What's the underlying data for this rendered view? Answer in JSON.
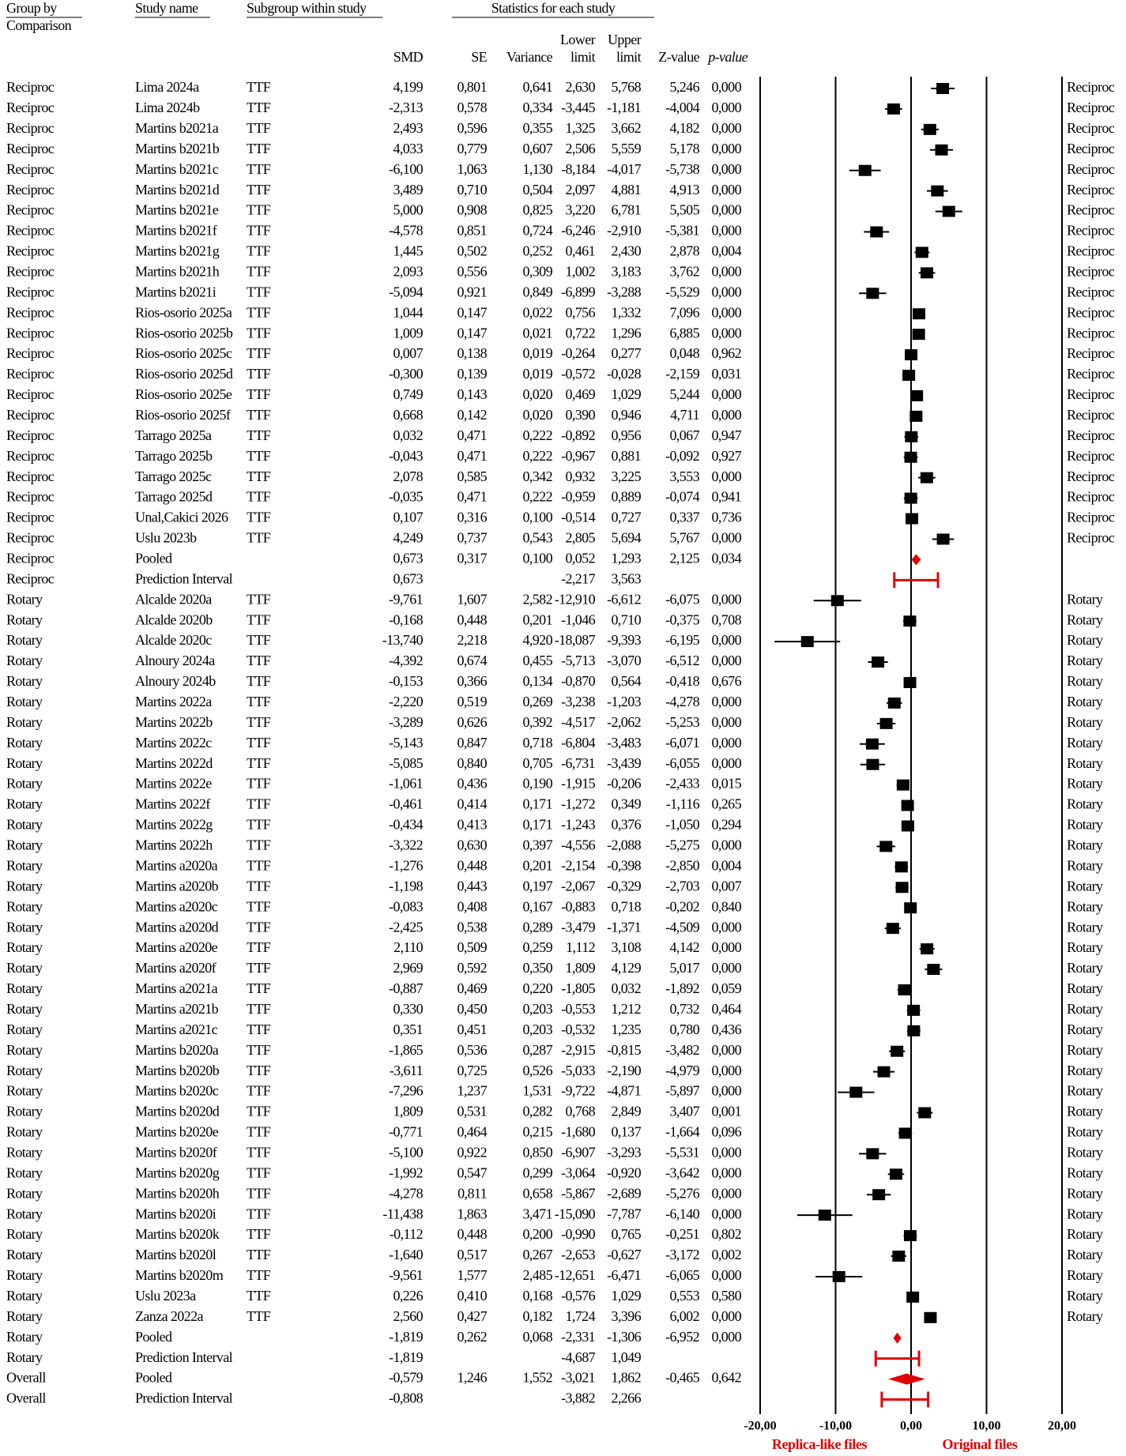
{
  "chart_data": {
    "type": "forest",
    "header": {
      "group_by": [
        "Group by",
        "Comparison"
      ],
      "study_name": "Study name",
      "subgroup": "Subgroup within study",
      "statistics": "Statistics for each study",
      "smd": "SMD",
      "se": "SE",
      "variance": "Variance",
      "lower": [
        "Lower",
        "limit"
      ],
      "upper": [
        "Upper",
        "limit"
      ],
      "z": "Z-value",
      "p": "p-value"
    },
    "comparison": [
      "Reciproc",
      "Reciproc",
      "Reciproc",
      "Reciproc",
      "Reciproc",
      "Reciproc",
      "Reciproc",
      "Reciproc",
      "Reciproc",
      "Reciproc",
      "Reciproc",
      "Reciproc",
      "Reciproc",
      "Reciproc",
      "Reciproc",
      "Reciproc",
      "Reciproc",
      "Reciproc",
      "Reciproc",
      "Reciproc",
      "Reciproc",
      "Reciproc",
      "Reciproc",
      "Reciproc",
      "Reciproc",
      "Rotary",
      "Rotary",
      "Rotary",
      "Rotary",
      "Rotary",
      "Rotary",
      "Rotary",
      "Rotary",
      "Rotary",
      "Rotary",
      "Rotary",
      "Rotary",
      "Rotary",
      "Rotary",
      "Rotary",
      "Rotary",
      "Rotary",
      "Rotary",
      "Rotary",
      "Rotary",
      "Rotary",
      "Rotary",
      "Rotary",
      "Rotary",
      "Rotary",
      "Rotary",
      "Rotary",
      "Rotary",
      "Rotary",
      "Rotary",
      "Rotary",
      "Rotary",
      "Rotary",
      "Rotary",
      "Rotary",
      "Rotary",
      "Rotary",
      "Rotary",
      "Overall",
      "Overall"
    ],
    "study": [
      "Lima 2024a",
      "Lima 2024b",
      "Martins b2021a",
      "Martins b2021b",
      "Martins b2021c",
      "Martins b2021d",
      "Martins b2021e",
      "Martins b2021f",
      "Martins b2021g",
      "Martins b2021h",
      "Martins b2021i",
      "Rios-osorio 2025a",
      "Rios-osorio 2025b",
      "Rios-osorio 2025c",
      "Rios-osorio 2025d",
      "Rios-osorio 2025e",
      "Rios-osorio 2025f",
      "Tarrago 2025a",
      "Tarrago 2025b",
      "Tarrago 2025c",
      "Tarrago 2025d",
      "Unal,Cakici 2026",
      "Uslu 2023b",
      "Pooled",
      "Prediction Interval",
      "Alcalde 2020a",
      "Alcalde 2020b",
      "Alcalde 2020c",
      "Alnoury 2024a",
      "Alnoury 2024b",
      "Martins 2022a",
      "Martins 2022b",
      "Martins 2022c",
      "Martins 2022d",
      "Martins 2022e",
      "Martins 2022f",
      "Martins 2022g",
      "Martins 2022h",
      "Martins a2020a",
      "Martins a2020b",
      "Martins a2020c",
      "Martins a2020d",
      "Martins a2020e",
      "Martins a2020f",
      "Martins a2021a",
      "Martins a2021b",
      "Martins a2021c",
      "Martins b2020a",
      "Martins b2020b",
      "Martins b2020c",
      "Martins b2020d",
      "Martins b2020e",
      "Martins b2020f",
      "Martins b2020g",
      "Martins b2020h",
      "Martins b2020i",
      "Martins b2020k",
      "Martins b2020l",
      "Martins b2020m",
      "Uslu 2023a",
      "Zanza 2022a",
      "Pooled",
      "Prediction Interval",
      "Pooled",
      "Prediction Interval"
    ],
    "subgroup": [
      "TTF",
      "TTF",
      "TTF",
      "TTF",
      "TTF",
      "TTF",
      "TTF",
      "TTF",
      "TTF",
      "TTF",
      "TTF",
      "TTF",
      "TTF",
      "TTF",
      "TTF",
      "TTF",
      "TTF",
      "TTF",
      "TTF",
      "TTF",
      "TTF",
      "TTF",
      "TTF",
      null,
      null,
      "TTF",
      "TTF",
      "TTF",
      "TTF",
      "TTF",
      "TTF",
      "TTF",
      "TTF",
      "TTF",
      "TTF",
      "TTF",
      "TTF",
      "TTF",
      "TTF",
      "TTF",
      "TTF",
      "TTF",
      "TTF",
      "TTF",
      "TTF",
      "TTF",
      "TTF",
      "TTF",
      "TTF",
      "TTF",
      "TTF",
      "TTF",
      "TTF",
      "TTF",
      "TTF",
      "TTF",
      "TTF",
      "TTF",
      "TTF",
      "TTF",
      "TTF",
      null,
      null,
      null,
      null
    ],
    "smd": {
      "values": [
        4.199,
        -2.313,
        2.493,
        4.033,
        -6.1,
        3.489,
        5.0,
        -4.578,
        1.445,
        2.093,
        -5.094,
        1.044,
        1.009,
        0.007,
        -0.3,
        0.749,
        0.668,
        0.032,
        -0.043,
        2.078,
        -0.035,
        0.107,
        4.249,
        0.673,
        0.673,
        -9.761,
        -0.168,
        -13.74,
        -4.392,
        -0.153,
        -2.22,
        -3.289,
        -5.143,
        -5.085,
        -1.061,
        -0.461,
        -0.434,
        -3.322,
        -1.276,
        -1.198,
        -0.083,
        -2.425,
        2.11,
        2.969,
        -0.887,
        0.33,
        0.351,
        -1.865,
        -3.611,
        -7.296,
        1.809,
        -0.771,
        -5.1,
        -1.992,
        -4.278,
        -11.438,
        -0.112,
        -1.64,
        -9.561,
        0.226,
        2.56,
        -1.819,
        -1.819,
        -0.579,
        -0.808
      ],
      "value_labels": [
        "4,199",
        "-2,313",
        "2,493",
        "4,033",
        "-6,100",
        "3,489",
        "5,000",
        "-4,578",
        "1,445",
        "2,093",
        "-5,094",
        "1,044",
        "1,009",
        "0,007",
        "-0,300",
        "0,749",
        "0,668",
        "0,032",
        "-0,043",
        "2,078",
        "-0,035",
        "0,107",
        "4,249",
        "0,673",
        "0,673",
        "-9,761",
        "-0,168",
        "-13,740",
        "-4,392",
        "-0,153",
        "-2,220",
        "-3,289",
        "-5,143",
        "-5,085",
        "-1,061",
        "-0,461",
        "-0,434",
        "-3,322",
        "-1,276",
        "-1,198",
        "-0,083",
        "-2,425",
        "2,110",
        "2,969",
        "-0,887",
        "0,330",
        "0,351",
        "-1,865",
        "-3,611",
        "-7,296",
        "1,809",
        "-0,771",
        "-5,100",
        "-1,992",
        "-4,278",
        "-11,438",
        "-0,112",
        "-1,640",
        "-9,561",
        "0,226",
        "2,560",
        "-1,819",
        "-1,819",
        "-0,579",
        "-0,808"
      ]
    },
    "se": [
      "0,801",
      "0,578",
      "0,596",
      "0,779",
      "1,063",
      "0,710",
      "0,908",
      "0,851",
      "0,502",
      "0,556",
      "0,921",
      "0,147",
      "0,147",
      "0,138",
      "0,139",
      "0,143",
      "0,142",
      "0,471",
      "0,471",
      "0,585",
      "0,471",
      "0,316",
      "0,737",
      "0,317",
      null,
      "1,607",
      "0,448",
      "2,218",
      "0,674",
      "0,366",
      "0,519",
      "0,626",
      "0,847",
      "0,840",
      "0,436",
      "0,414",
      "0,413",
      "0,630",
      "0,448",
      "0,443",
      "0,408",
      "0,538",
      "0,509",
      "0,592",
      "0,469",
      "0,450",
      "0,451",
      "0,536",
      "0,725",
      "1,237",
      "0,531",
      "0,464",
      "0,922",
      "0,547",
      "0,811",
      "1,863",
      "0,448",
      "0,517",
      "1,577",
      "0,410",
      "0,427",
      "0,262",
      null,
      "1,246",
      null
    ],
    "variance": [
      "0,641",
      "0,334",
      "0,355",
      "0,607",
      "1,130",
      "0,504",
      "0,825",
      "0,724",
      "0,252",
      "0,309",
      "0,849",
      "0,022",
      "0,021",
      "0,019",
      "0,019",
      "0,020",
      "0,020",
      "0,222",
      "0,222",
      "0,342",
      "0,222",
      "0,100",
      "0,543",
      "0,100",
      null,
      "2,582",
      "0,201",
      "4,920",
      "0,455",
      "0,134",
      "0,269",
      "0,392",
      "0,718",
      "0,705",
      "0,190",
      "0,171",
      "0,171",
      "0,397",
      "0,201",
      "0,197",
      "0,167",
      "0,289",
      "0,259",
      "0,350",
      "0,220",
      "0,203",
      "0,203",
      "0,287",
      "0,526",
      "1,531",
      "0,282",
      "0,215",
      "0,850",
      "0,299",
      "0,658",
      "3,471",
      "0,200",
      "0,267",
      "2,485",
      "0,168",
      "0,182",
      "0,068",
      null,
      "1,552",
      null
    ],
    "lower": {
      "values": [
        2.63,
        -3.445,
        1.325,
        2.506,
        -8.184,
        2.097,
        3.22,
        -6.246,
        0.461,
        1.002,
        -6.899,
        0.756,
        0.722,
        -0.264,
        -0.572,
        0.469,
        0.39,
        -0.892,
        -0.967,
        0.932,
        -0.959,
        -0.514,
        2.805,
        0.052,
        -2.217,
        -12.91,
        -1.046,
        -18.087,
        -5.713,
        -0.87,
        -3.238,
        -4.517,
        -6.804,
        -6.731,
        -1.915,
        -1.272,
        -1.243,
        -4.556,
        -2.154,
        -2.067,
        -0.883,
        -3.479,
        1.112,
        1.809,
        -1.805,
        -0.553,
        -0.532,
        -2.915,
        -5.033,
        -9.722,
        0.768,
        -1.68,
        -6.907,
        -3.064,
        -5.867,
        -15.09,
        -0.99,
        -2.653,
        -12.651,
        -0.576,
        1.724,
        -2.331,
        -4.687,
        -3.021,
        -3.882
      ],
      "value_labels": [
        "2,630",
        "-3,445",
        "1,325",
        "2,506",
        "-8,184",
        "2,097",
        "3,220",
        "-6,246",
        "0,461",
        "1,002",
        "-6,899",
        "0,756",
        "0,722",
        "-0,264",
        "-0,572",
        "0,469",
        "0,390",
        "-0,892",
        "-0,967",
        "0,932",
        "-0,959",
        "-0,514",
        "2,805",
        "0,052",
        "-2,217",
        "-12,910",
        "-1,046",
        "-18,087",
        "-5,713",
        "-0,870",
        "-3,238",
        "-4,517",
        "-6,804",
        "-6,731",
        "-1,915",
        "-1,272",
        "-1,243",
        "-4,556",
        "-2,154",
        "-2,067",
        "-0,883",
        "-3,479",
        "1,112",
        "1,809",
        "-1,805",
        "-0,553",
        "-0,532",
        "-2,915",
        "-5,033",
        "-9,722",
        "0,768",
        "-1,680",
        "-6,907",
        "-3,064",
        "-5,867",
        "-15,090",
        "-0,990",
        "-2,653",
        "-12,651",
        "-0,576",
        "1,724",
        "-2,331",
        "-4,687",
        "-3,021",
        "-3,882"
      ]
    },
    "upper": {
      "values": [
        5.768,
        -1.181,
        3.662,
        5.559,
        -4.017,
        4.881,
        6.781,
        -2.91,
        2.43,
        3.183,
        -3.288,
        1.332,
        1.296,
        0.277,
        -0.028,
        1.029,
        0.946,
        0.956,
        0.881,
        3.225,
        0.889,
        0.727,
        5.694,
        1.293,
        3.563,
        -6.612,
        0.71,
        -9.393,
        -3.07,
        0.564,
        -1.203,
        -2.062,
        -3.483,
        -3.439,
        -0.206,
        0.349,
        0.376,
        -2.088,
        -0.398,
        -0.329,
        0.718,
        -1.371,
        3.108,
        4.129,
        0.032,
        1.212,
        1.235,
        -0.815,
        -2.19,
        -4.871,
        2.849,
        0.137,
        -3.293,
        -0.92,
        -2.689,
        -7.787,
        0.765,
        -0.627,
        -6.471,
        1.029,
        3.396,
        -1.306,
        1.049,
        1.862,
        2.266
      ],
      "value_labels": [
        "5,768",
        "-1,181",
        "3,662",
        "5,559",
        "-4,017",
        "4,881",
        "6,781",
        "-2,910",
        "2,430",
        "3,183",
        "-3,288",
        "1,332",
        "1,296",
        "0,277",
        "-0,028",
        "1,029",
        "0,946",
        "0,956",
        "0,881",
        "3,225",
        "0,889",
        "0,727",
        "5,694",
        "1,293",
        "3,563",
        "-6,612",
        "0,710",
        "-9,393",
        "-3,070",
        "0,564",
        "-1,203",
        "-2,062",
        "-3,483",
        "-3,439",
        "-0,206",
        "0,349",
        "0,376",
        "-2,088",
        "-0,398",
        "-0,329",
        "0,718",
        "-1,371",
        "3,108",
        "4,129",
        "0,032",
        "1,212",
        "1,235",
        "-0,815",
        "-2,190",
        "-4,871",
        "2,849",
        "0,137",
        "-3,293",
        "-0,920",
        "-2,689",
        "-7,787",
        "0,765",
        "-0,627",
        "-6,471",
        "1,029",
        "3,396",
        "-1,306",
        "1,049",
        "1,862",
        "2,266"
      ]
    },
    "z": [
      "5,246",
      "-4,004",
      "4,182",
      "5,178",
      "-5,738",
      "4,913",
      "5,505",
      "-5,381",
      "2,878",
      "3,762",
      "-5,529",
      "7,096",
      "6,885",
      "0,048",
      "-2,159",
      "5,244",
      "4,711",
      "0,067",
      "-0,092",
      "3,553",
      "-0,074",
      "0,337",
      "5,767",
      "2,125",
      null,
      "-6,075",
      "-0,375",
      "-6,195",
      "-6,512",
      "-0,418",
      "-4,278",
      "-5,253",
      "-6,071",
      "-6,055",
      "-2,433",
      "-1,116",
      "-1,050",
      "-5,275",
      "-2,850",
      "-2,703",
      "-0,202",
      "-4,509",
      "4,142",
      "5,017",
      "-1,892",
      "0,732",
      "0,780",
      "-3,482",
      "-4,979",
      "-5,897",
      "3,407",
      "-1,664",
      "-5,531",
      "-3,642",
      "-5,276",
      "-6,140",
      "-0,251",
      "-3,172",
      "-6,065",
      "0,553",
      "6,002",
      "-6,952",
      null,
      "-0,465",
      null
    ],
    "p": [
      "0,000",
      "0,000",
      "0,000",
      "0,000",
      "0,000",
      "0,000",
      "0,000",
      "0,000",
      "0,004",
      "0,000",
      "0,000",
      "0,000",
      "0,000",
      "0,962",
      "0,031",
      "0,000",
      "0,000",
      "0,947",
      "0,927",
      "0,000",
      "0,941",
      "0,736",
      "0,000",
      "0,034",
      null,
      "0,000",
      "0,708",
      "0,000",
      "0,000",
      "0,676",
      "0,000",
      "0,000",
      "0,000",
      "0,000",
      "0,015",
      "0,265",
      "0,294",
      "0,000",
      "0,004",
      "0,007",
      "0,840",
      "0,000",
      "0,000",
      "0,000",
      "0,059",
      "0,464",
      "0,436",
      "0,000",
      "0,000",
      "0,000",
      "0,001",
      "0,096",
      "0,000",
      "0,000",
      "0,000",
      "0,000",
      "0,802",
      "0,002",
      "0,000",
      "0,580",
      "0,000",
      "0,000",
      null,
      "0,642",
      null
    ],
    "xlim": [
      -20,
      20
    ],
    "xticks": [
      {
        "value": -20,
        "label": "-20,00"
      },
      {
        "value": -10,
        "label": "-10,00"
      },
      {
        "value": 0,
        "label": "0,00"
      },
      {
        "value": 10,
        "label": "10,00"
      },
      {
        "value": 20,
        "label": "20,00"
      }
    ],
    "x_labels": [
      "Replica-like files",
      "Original files"
    ],
    "marker_color": "#000000",
    "pooled_color": "#e00000"
  }
}
